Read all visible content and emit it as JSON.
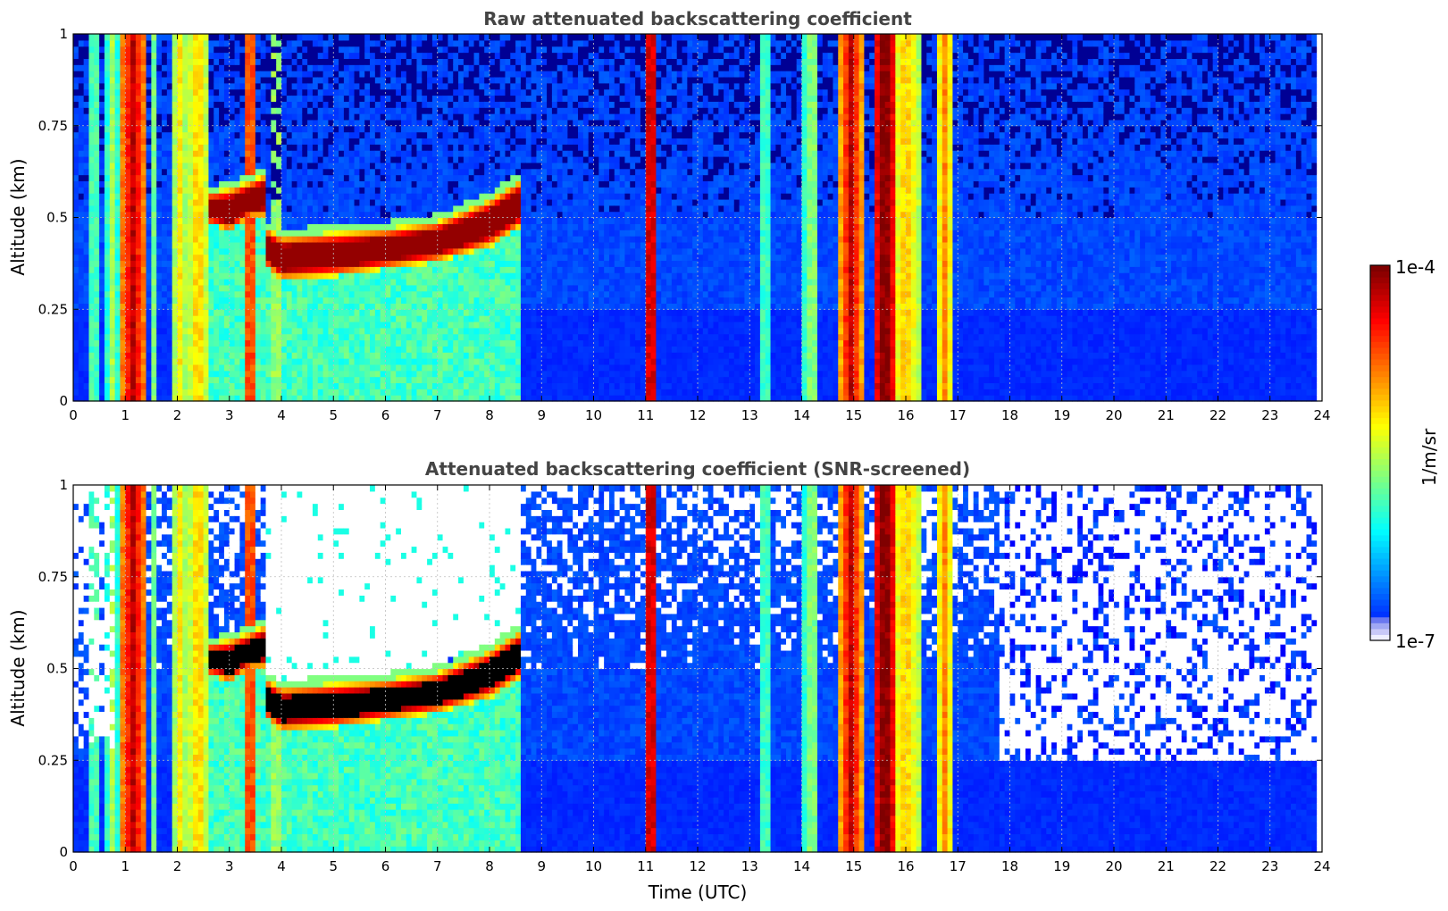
{
  "colors": {
    "clear_sky": "#ffffff",
    "background_noise": "#1a3ef0",
    "aerosol": "#40e0d0",
    "cloud_core": "#7f0000",
    "saturated": "#000000"
  },
  "chart_data": [
    {
      "type": "heatmap",
      "title": "Raw attenuated backscattering coefficient",
      "xlabel": "",
      "ylabel": "Altitude (km)",
      "xlim": [
        0,
        24
      ],
      "ylim": [
        0,
        1
      ],
      "xticks": [
        "0",
        "1",
        "2",
        "3",
        "4",
        "5",
        "6",
        "7",
        "8",
        "9",
        "10",
        "11",
        "12",
        "13",
        "14",
        "15",
        "16",
        "17",
        "18",
        "19",
        "20",
        "21",
        "22",
        "23",
        "24"
      ],
      "yticks": [
        "0",
        "0.25",
        "0.5",
        "0.75",
        "1"
      ],
      "grid": true,
      "data_end_time": 23.85,
      "features": {
        "cloud_layer": [
          {
            "t": 2.7,
            "base": 0.48,
            "top": 0.57
          },
          {
            "t": 3.0,
            "base": 0.46,
            "top": 0.58
          },
          {
            "t": 3.4,
            "base": 0.5,
            "top": 0.6
          },
          {
            "t": 3.7,
            "base": 0.5,
            "top": 0.62
          },
          {
            "t": 3.75,
            "base": 0.36,
            "top": 0.47
          },
          {
            "t": 4.0,
            "base": 0.33,
            "top": 0.45
          },
          {
            "t": 5.0,
            "base": 0.34,
            "top": 0.46
          },
          {
            "t": 6.0,
            "base": 0.36,
            "top": 0.47
          },
          {
            "t": 7.0,
            "base": 0.38,
            "top": 0.49
          },
          {
            "t": 8.0,
            "base": 0.42,
            "top": 0.55
          },
          {
            "t": 8.55,
            "base": 0.47,
            "top": 0.6
          }
        ],
        "precipitation_columns": [
          {
            "t": 0.4,
            "width": 0.12,
            "level": 0.45
          },
          {
            "t": 0.75,
            "width": 0.1,
            "level": 0.5
          },
          {
            "t": 1.15,
            "width": 0.25,
            "level": 0.9
          },
          {
            "t": 1.55,
            "width": 0.1,
            "level": 0.45
          },
          {
            "t": 2.05,
            "width": 0.15,
            "level": 0.6
          },
          {
            "t": 2.4,
            "width": 0.2,
            "level": 0.65
          },
          {
            "t": 3.4,
            "width": 0.12,
            "level": 0.85
          },
          {
            "t": 3.9,
            "width": 0.1,
            "level": 0.55
          },
          {
            "t": 11.1,
            "width": 0.15,
            "level": 0.95
          },
          {
            "t": 13.3,
            "width": 0.1,
            "level": 0.45
          },
          {
            "t": 14.2,
            "width": 0.15,
            "level": 0.5
          },
          {
            "t": 14.95,
            "width": 0.2,
            "level": 0.9
          },
          {
            "t": 15.6,
            "width": 0.25,
            "level": 1.0
          },
          {
            "t": 16.0,
            "width": 0.3,
            "level": 0.65
          },
          {
            "t": 16.75,
            "width": 0.15,
            "level": 0.7
          }
        ]
      }
    },
    {
      "type": "heatmap",
      "title": "Attenuated backscattering coefficient (SNR-screened)",
      "xlabel": "Time (UTC)",
      "ylabel": "Altitude (km)",
      "xlim": [
        0,
        24
      ],
      "ylim": [
        0,
        1
      ],
      "xticks": [
        "0",
        "1",
        "2",
        "3",
        "4",
        "5",
        "6",
        "7",
        "8",
        "9",
        "10",
        "11",
        "12",
        "13",
        "14",
        "15",
        "16",
        "17",
        "18",
        "19",
        "20",
        "21",
        "22",
        "23",
        "24"
      ],
      "yticks": [
        "0",
        "0.25",
        "0.5",
        "0.75",
        "1"
      ],
      "grid": true,
      "data_end_time": 23.85,
      "screened_top_after_17h": 0.25
    }
  ],
  "colorbar": {
    "label": "1/m/sr",
    "max_label": "1e-4",
    "min_label": "1e-7",
    "scale": "log",
    "range": [
      1e-07,
      0.0001
    ],
    "colormap": "jet"
  }
}
